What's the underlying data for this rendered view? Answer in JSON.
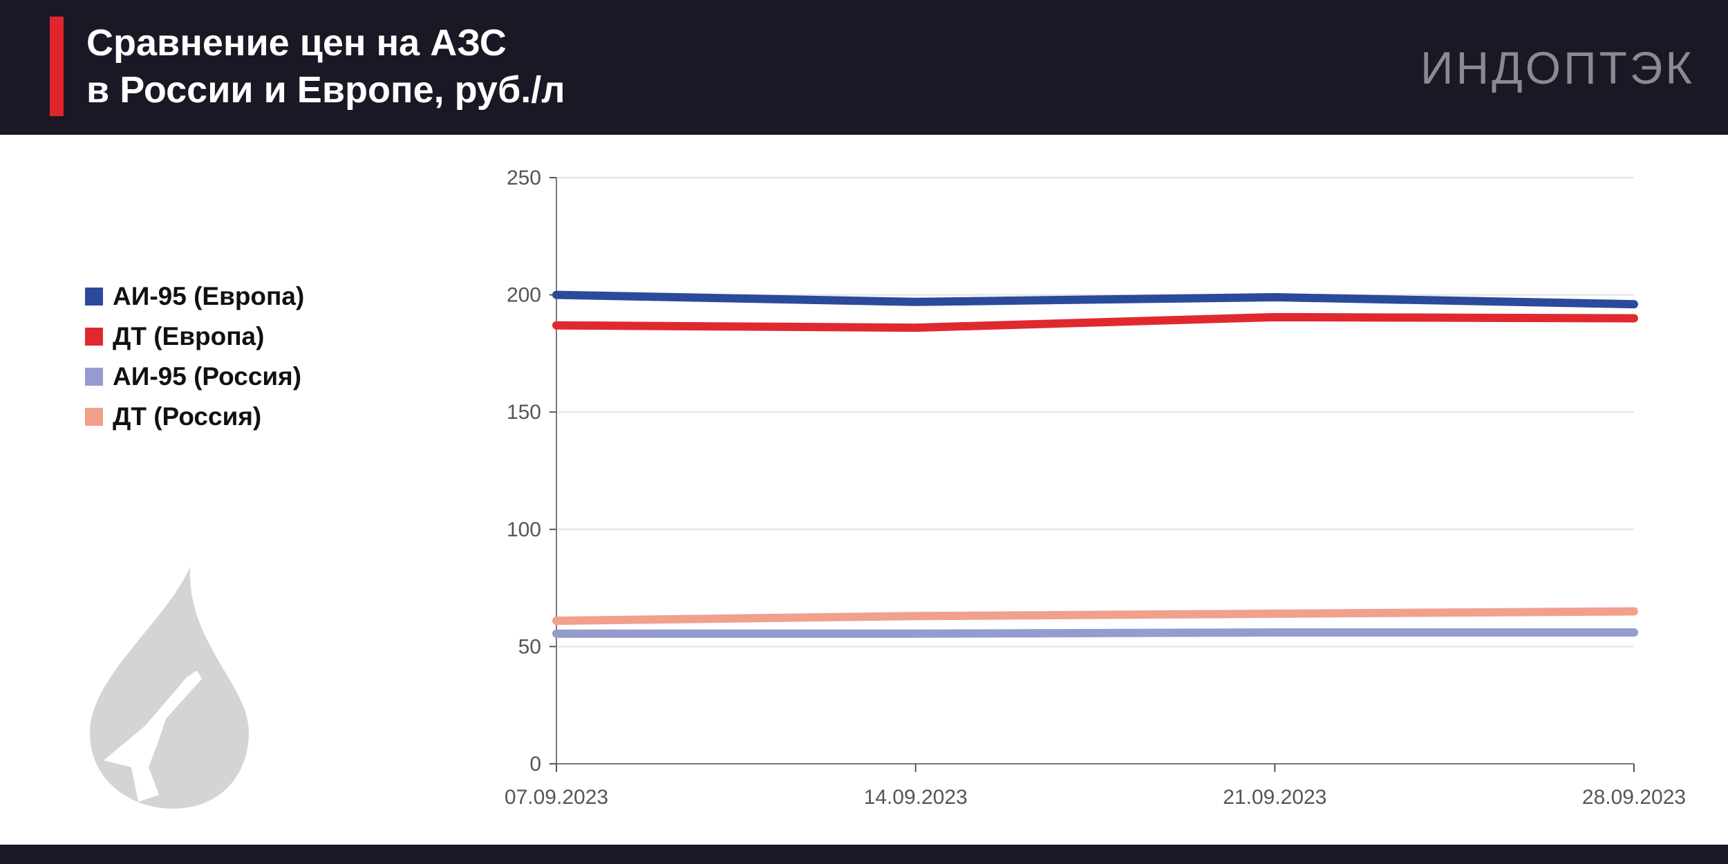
{
  "header": {
    "title_line1": "Сравнение цен на АЗС",
    "title_line2": "в России и Европе, руб./л",
    "logo": "ИНДОПТЭК"
  },
  "chart_data": {
    "type": "line",
    "title": "Сравнение цен на АЗС в России и Европе, руб./л",
    "xlabel": "",
    "ylabel": "",
    "x": [
      "07.09.2023",
      "14.09.2023",
      "21.09.2023",
      "28.09.2023"
    ],
    "ylim": [
      0,
      250
    ],
    "yticks": [
      0,
      50,
      100,
      150,
      200,
      250
    ],
    "grid": true,
    "legend_position": "left",
    "series": [
      {
        "name": "АИ-95 (Европа)",
        "color": "#2b4a9b",
        "values": [
          200,
          197,
          199,
          196
        ]
      },
      {
        "name": "ДТ (Европа)",
        "color": "#e0292f",
        "values": [
          187,
          186,
          190.5,
          190
        ]
      },
      {
        "name": "АИ-95 (Россия)",
        "color": "#959bcd",
        "values": [
          55.5,
          55.5,
          56,
          56
        ]
      },
      {
        "name": "ДТ (Россия)",
        "color": "#f1a08c",
        "values": [
          61,
          63,
          64,
          65
        ]
      }
    ]
  }
}
